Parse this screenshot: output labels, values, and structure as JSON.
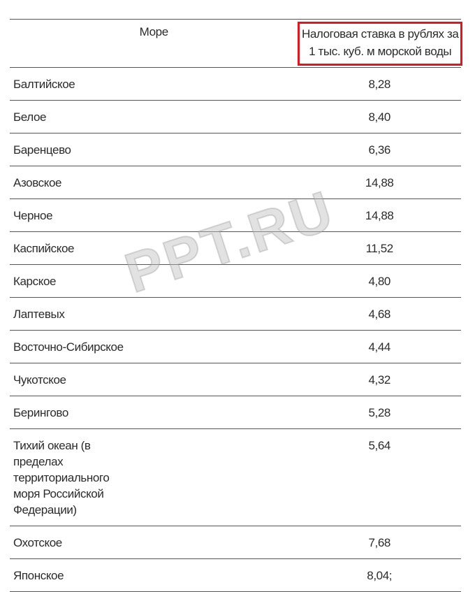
{
  "table": {
    "headers": [
      "Море",
      "Налоговая ставка в рублях за 1 тыс. куб. м морской воды"
    ],
    "header_highlight_color": "#e0161e",
    "rows": [
      {
        "sea": "Балтийское",
        "rate": "8,28"
      },
      {
        "sea": "Белое",
        "rate": "8,40"
      },
      {
        "sea": "Баренцево",
        "rate": "6,36"
      },
      {
        "sea": "Азовское",
        "rate": "14,88"
      },
      {
        "sea": "Черное",
        "rate": "14,88"
      },
      {
        "sea": "Каспийское",
        "rate": "11,52"
      },
      {
        "sea": "Карское",
        "rate": "4,80"
      },
      {
        "sea": "Лаптевых",
        "rate": "4,68"
      },
      {
        "sea": "Восточно-Сибирское",
        "rate": "4,44"
      },
      {
        "sea": "Чукотское",
        "rate": "4,32"
      },
      {
        "sea": "Берингово",
        "rate": "5,28"
      },
      {
        "sea": "Тихий океан (в пределах территориального моря Российской Федерации)",
        "rate": "5,64"
      },
      {
        "sea": "Охотское",
        "rate": "7,68"
      },
      {
        "sea": "Японское",
        "rate": "8,04;"
      }
    ]
  },
  "watermark": "PPT.RU"
}
